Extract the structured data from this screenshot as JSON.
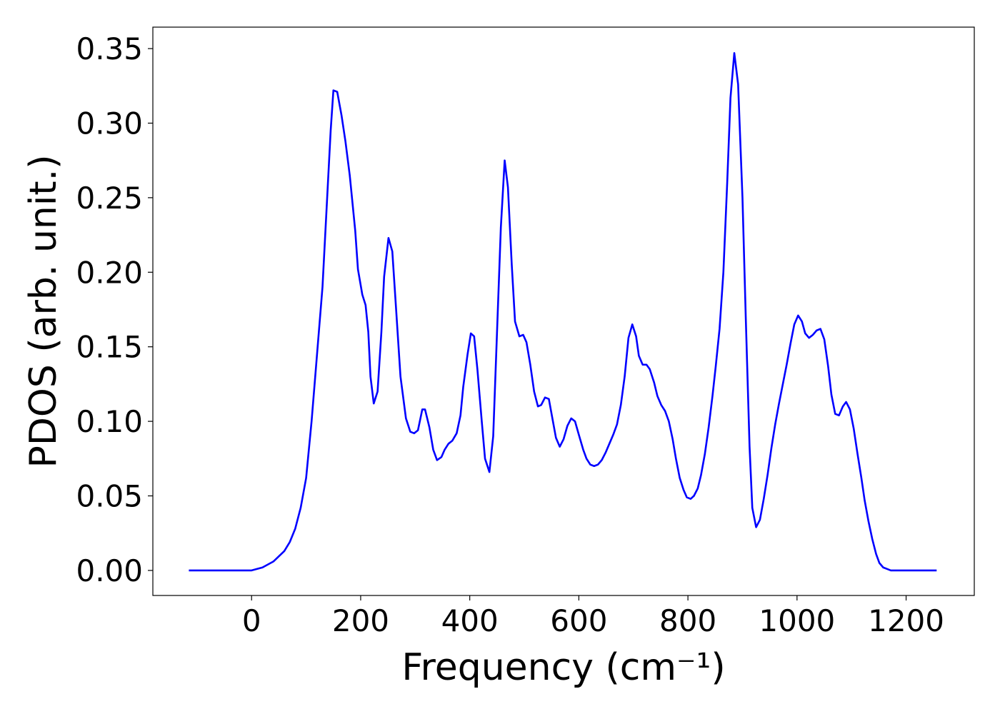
{
  "chart_data": {
    "type": "line",
    "xlabel": "Frequency (cm⁻¹)",
    "ylabel": "PDOS (arb. unit.)",
    "xlim": [
      -181,
      1325
    ],
    "ylim": [
      -0.0168,
      0.3644
    ],
    "xticks": [
      0,
      200,
      400,
      600,
      800,
      1000,
      1200
    ],
    "yticks": [
      {
        "value": 0,
        "label": "0.00"
      },
      0.05,
      {
        "value": 0.1,
        "label": "0.10"
      },
      0.15,
      {
        "value": 0.2,
        "label": "0.20"
      },
      0.25,
      {
        "value": 0.3,
        "label": "0.30"
      },
      0.35
    ],
    "x": [
      -115,
      -100,
      -80,
      -60,
      -40,
      -20,
      0,
      20,
      40,
      60,
      70,
      80,
      90,
      100,
      110,
      120,
      130,
      140,
      145,
      150,
      157,
      165,
      172,
      180,
      190,
      195,
      203,
      209,
      214,
      218,
      224,
      231,
      238,
      243,
      251,
      258,
      265,
      273,
      283,
      291,
      298,
      305,
      313,
      318,
      326,
      333,
      340,
      348,
      354,
      361,
      368,
      376,
      383,
      388,
      396,
      402,
      408,
      414,
      422,
      428,
      436,
      443,
      450,
      457,
      464,
      470,
      477,
      483,
      491,
      498,
      504,
      511,
      518,
      525,
      531,
      538,
      545,
      551,
      558,
      565,
      572,
      579,
      586,
      593,
      600,
      608,
      614,
      621,
      628,
      635,
      642,
      649,
      656,
      663,
      670,
      677,
      684,
      691,
      698,
      705,
      710,
      717,
      724,
      730,
      738,
      744,
      751,
      758,
      765,
      772,
      778,
      785,
      792,
      798,
      805,
      811,
      818,
      824,
      831,
      838,
      845,
      851,
      858,
      865,
      872,
      878,
      885,
      892,
      900,
      906,
      913,
      918,
      925,
      932,
      939,
      946,
      953,
      960,
      967,
      974,
      981,
      988,
      995,
      1002,
      1009,
      1015,
      1022,
      1029,
      1036,
      1043,
      1050,
      1057,
      1063,
      1070,
      1077,
      1084,
      1090,
      1097,
      1104,
      1111,
      1118,
      1124,
      1131,
      1138,
      1145,
      1151,
      1158,
      1165,
      1172,
      1200,
      1230,
      1256
    ],
    "series": [
      {
        "color": "#0000ff",
        "values": [
          0,
          0,
          0,
          0,
          0,
          0,
          0,
          0.002,
          0.006,
          0.013,
          0.019,
          0.028,
          0.042,
          0.062,
          0.1,
          0.145,
          0.19,
          0.26,
          0.295,
          0.322,
          0.321,
          0.305,
          0.288,
          0.265,
          0.228,
          0.202,
          0.185,
          0.178,
          0.16,
          0.13,
          0.112,
          0.12,
          0.16,
          0.197,
          0.223,
          0.214,
          0.175,
          0.13,
          0.102,
          0.093,
          0.092,
          0.094,
          0.108,
          0.108,
          0.096,
          0.081,
          0.074,
          0.076,
          0.081,
          0.085,
          0.087,
          0.092,
          0.104,
          0.123,
          0.145,
          0.159,
          0.157,
          0.135,
          0.1,
          0.075,
          0.066,
          0.09,
          0.16,
          0.23,
          0.275,
          0.257,
          0.205,
          0.167,
          0.157,
          0.158,
          0.153,
          0.138,
          0.12,
          0.11,
          0.111,
          0.116,
          0.115,
          0.103,
          0.089,
          0.083,
          0.088,
          0.097,
          0.102,
          0.1,
          0.091,
          0.081,
          0.075,
          0.071,
          0.07,
          0.071,
          0.074,
          0.079,
          0.085,
          0.091,
          0.098,
          0.111,
          0.13,
          0.156,
          0.165,
          0.157,
          0.144,
          0.138,
          0.138,
          0.135,
          0.126,
          0.117,
          0.111,
          0.107,
          0.1,
          0.088,
          0.075,
          0.062,
          0.054,
          0.049,
          0.048,
          0.05,
          0.055,
          0.064,
          0.078,
          0.096,
          0.117,
          0.137,
          0.162,
          0.2,
          0.26,
          0.317,
          0.347,
          0.326,
          0.25,
          0.17,
          0.083,
          0.042,
          0.029,
          0.034,
          0.048,
          0.064,
          0.082,
          0.098,
          0.112,
          0.125,
          0.138,
          0.152,
          0.165,
          0.171,
          0.167,
          0.159,
          0.156,
          0.158,
          0.161,
          0.162,
          0.155,
          0.137,
          0.118,
          0.105,
          0.104,
          0.11,
          0.113,
          0.108,
          0.095,
          0.078,
          0.062,
          0.047,
          0.033,
          0.021,
          0.011,
          0.005,
          0.002,
          0.001,
          0,
          0,
          0,
          0
        ]
      }
    ]
  }
}
